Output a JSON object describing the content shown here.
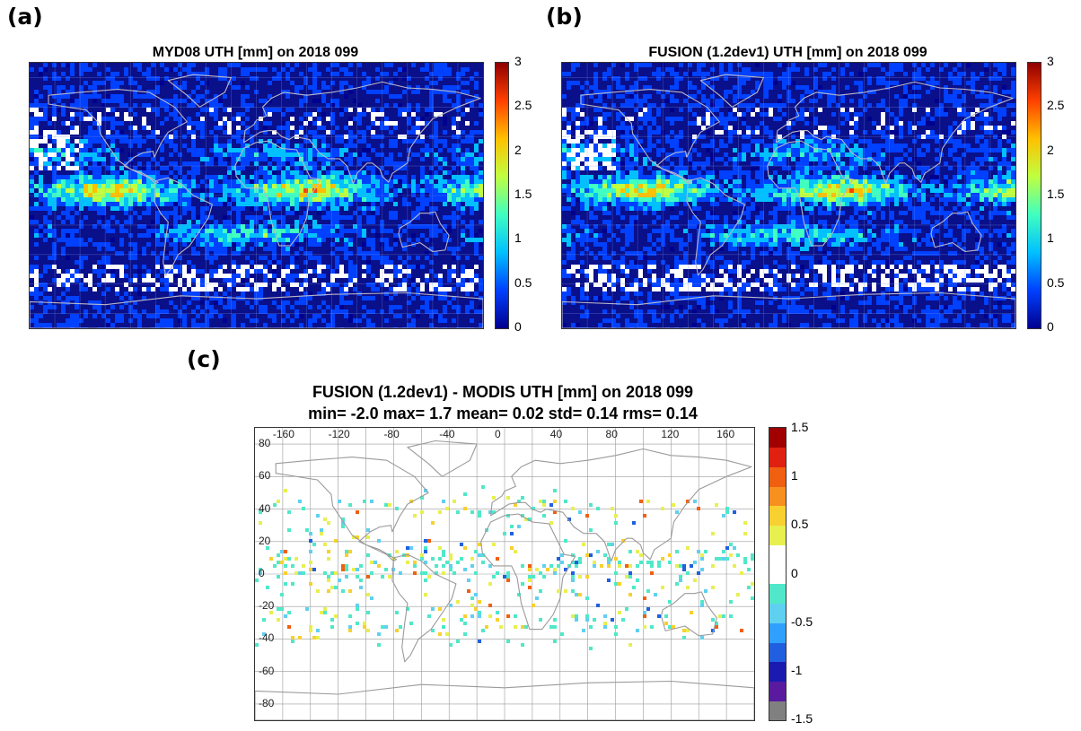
{
  "panels": [
    {
      "label": "(a)",
      "title": "MYD08 UTH [mm]  on 2018 099",
      "colorbar": {
        "ticks": [
          "3",
          "2.5",
          "2",
          "1.5",
          "1",
          "0.5",
          "0"
        ]
      }
    },
    {
      "label": "(b)",
      "title": "FUSION (1.2dev1) UTH [mm]  on 2018 099",
      "colorbar": {
        "ticks": [
          "3",
          "2.5",
          "2",
          "1.5",
          "1",
          "0.5",
          "0"
        ]
      }
    },
    {
      "label": "(c)",
      "title": "FUSION (1.2dev1) - MODIS UTH [mm]  on 2018 099",
      "stats": "min= -2.0 max= 1.7 mean= 0.02 std= 0.14 rms= 0.14",
      "lon_ticks": [
        "-160",
        "-120",
        "-80",
        "-40",
        "0",
        "40",
        "80",
        "120",
        "160"
      ],
      "lat_ticks": [
        "80",
        "60",
        "40",
        "20",
        "0",
        "-20",
        "-40",
        "-60",
        "-80"
      ],
      "colorbar": {
        "ticks": [
          "1.5",
          "1",
          "0.5",
          "0",
          "-0.5",
          "-1",
          "-1.5"
        ]
      }
    }
  ],
  "colors": {
    "uth_scale": [
      "#00008f",
      "#0040ff",
      "#00c0ff",
      "#40ffc0",
      "#c0ff40",
      "#ffc000",
      "#ff4000",
      "#8f0000"
    ],
    "diff_scale": [
      "#808080",
      "#5a1aa0",
      "#1a1ab0",
      "#2060e0",
      "#30a0ff",
      "#60d0f0",
      "#50e8c8",
      "#ffffff",
      "#ffffff",
      "#e8f050",
      "#f8d030",
      "#f89020",
      "#f06010",
      "#e02010",
      "#a00000"
    ]
  }
}
